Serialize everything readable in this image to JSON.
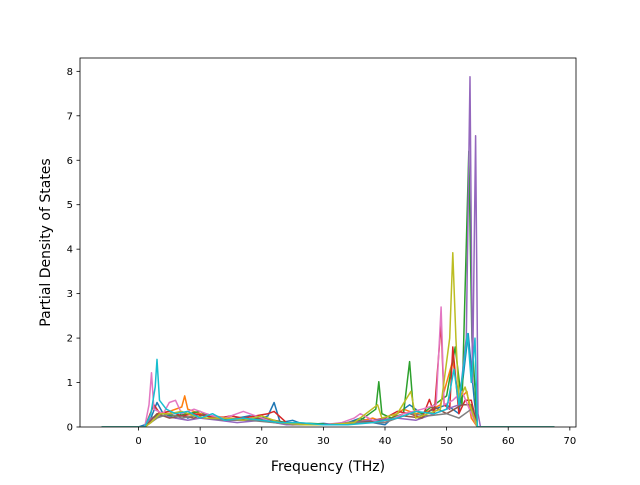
{
  "chart_data": {
    "type": "line",
    "title": "",
    "xlabel": "Frequency (THz)",
    "ylabel": "Partial Density of States",
    "xlim": [
      -9.5,
      71
    ],
    "ylim": [
      0,
      8.3
    ],
    "x_ticks": [
      0,
      10,
      20,
      30,
      40,
      50,
      60,
      70
    ],
    "y_ticks": [
      0,
      1,
      2,
      3,
      4,
      5,
      6,
      7,
      8
    ],
    "grid": false,
    "legend": "none",
    "series": [
      {
        "color": "#1f77b4",
        "points": [
          [
            -6,
            0
          ],
          [
            0,
            0
          ],
          [
            1,
            0.05
          ],
          [
            2,
            0.2
          ],
          [
            3,
            0.55
          ],
          [
            4,
            0.3
          ],
          [
            5,
            0.25
          ],
          [
            6,
            0.2
          ],
          [
            7,
            0.3
          ],
          [
            8,
            0.2
          ],
          [
            9,
            0.25
          ],
          [
            10,
            0.3
          ],
          [
            12,
            0.2
          ],
          [
            14,
            0.15
          ],
          [
            16,
            0.2
          ],
          [
            18,
            0.25
          ],
          [
            20,
            0.2
          ],
          [
            21,
            0.25
          ],
          [
            22,
            0.55
          ],
          [
            23,
            0.1
          ],
          [
            25,
            0.15
          ],
          [
            27,
            0.05
          ],
          [
            30,
            0.08
          ],
          [
            32,
            0.05
          ],
          [
            34,
            0.1
          ],
          [
            36,
            0.2
          ],
          [
            38,
            0.1
          ],
          [
            40,
            0.05
          ],
          [
            42,
            0.3
          ],
          [
            44,
            0.5
          ],
          [
            46,
            0.3
          ],
          [
            48,
            0.4
          ],
          [
            50,
            0.5
          ],
          [
            52,
            0.3
          ],
          [
            53.5,
            2.1
          ],
          [
            54.5,
            0.6
          ],
          [
            55,
            0
          ],
          [
            67.5,
            0
          ]
        ]
      },
      {
        "color": "#ff7f0e",
        "points": [
          [
            -6,
            0
          ],
          [
            1,
            0
          ],
          [
            3,
            0.3
          ],
          [
            5,
            0.35
          ],
          [
            7,
            0.45
          ],
          [
            7.5,
            0.7
          ],
          [
            8,
            0.4
          ],
          [
            10,
            0.3
          ],
          [
            12,
            0.25
          ],
          [
            15,
            0.2
          ],
          [
            18,
            0.15
          ],
          [
            20,
            0.2
          ],
          [
            22,
            0.1
          ],
          [
            26,
            0.05
          ],
          [
            30,
            0.05
          ],
          [
            35,
            0.1
          ],
          [
            38,
            0.2
          ],
          [
            40,
            0.1
          ],
          [
            43,
            0.4
          ],
          [
            45,
            0.3
          ],
          [
            47,
            0.35
          ],
          [
            49,
            0.5
          ],
          [
            51,
            1.5
          ],
          [
            52,
            0.6
          ],
          [
            53.3,
            0.8
          ],
          [
            54,
            0.2
          ],
          [
            55,
            0
          ],
          [
            67.5,
            0
          ]
        ]
      },
      {
        "color": "#2ca02c",
        "points": [
          [
            -6,
            0
          ],
          [
            1,
            0
          ],
          [
            2,
            0.2
          ],
          [
            4,
            0.3
          ],
          [
            6,
            0.25
          ],
          [
            8,
            0.3
          ],
          [
            10,
            0.35
          ],
          [
            12,
            0.2
          ],
          [
            14,
            0.2
          ],
          [
            17,
            0.15
          ],
          [
            20,
            0.2
          ],
          [
            24,
            0.1
          ],
          [
            28,
            0.08
          ],
          [
            32,
            0.05
          ],
          [
            36,
            0.15
          ],
          [
            38.5,
            0.4
          ],
          [
            39,
            1.02
          ],
          [
            39.5,
            0.3
          ],
          [
            41,
            0.2
          ],
          [
            43,
            0.3
          ],
          [
            44,
            1.47
          ],
          [
            44.6,
            0.4
          ],
          [
            46,
            0.3
          ],
          [
            48,
            0.5
          ],
          [
            50,
            0.7
          ],
          [
            51.4,
            1.8
          ],
          [
            52.5,
            0.5
          ],
          [
            53.6,
            6.2
          ],
          [
            54.1,
            2.0
          ],
          [
            55,
            0
          ],
          [
            67.5,
            0
          ]
        ]
      },
      {
        "color": "#d62728",
        "points": [
          [
            -6,
            0
          ],
          [
            1,
            0
          ],
          [
            2.5,
            0.5
          ],
          [
            3.5,
            0.3
          ],
          [
            5,
            0.35
          ],
          [
            7,
            0.25
          ],
          [
            9,
            0.3
          ],
          [
            11,
            0.25
          ],
          [
            13,
            0.2
          ],
          [
            15,
            0.25
          ],
          [
            17,
            0.2
          ],
          [
            19,
            0.25
          ],
          [
            21,
            0.3
          ],
          [
            22,
            0.35
          ],
          [
            24,
            0.1
          ],
          [
            28,
            0.05
          ],
          [
            32,
            0.05
          ],
          [
            36,
            0.1
          ],
          [
            40,
            0.2
          ],
          [
            42,
            0.35
          ],
          [
            44,
            0.3
          ],
          [
            46,
            0.2
          ],
          [
            47.2,
            0.62
          ],
          [
            48,
            0.3
          ],
          [
            49.1,
            2.35
          ],
          [
            49.6,
            0.5
          ],
          [
            50.5,
            0.4
          ],
          [
            51,
            1.8
          ],
          [
            52,
            0.3
          ],
          [
            53,
            0.6
          ],
          [
            54,
            0.6
          ],
          [
            55,
            0
          ],
          [
            67.5,
            0
          ]
        ]
      },
      {
        "color": "#9467bd",
        "points": [
          [
            -6,
            0
          ],
          [
            1,
            0
          ],
          [
            2,
            0.2
          ],
          [
            4,
            0.25
          ],
          [
            6,
            0.2
          ],
          [
            8,
            0.15
          ],
          [
            10,
            0.2
          ],
          [
            13,
            0.15
          ],
          [
            16,
            0.1
          ],
          [
            20,
            0.15
          ],
          [
            24,
            0.05
          ],
          [
            30,
            0.05
          ],
          [
            34,
            0.1
          ],
          [
            38,
            0.15
          ],
          [
            42,
            0.2
          ],
          [
            45,
            0.15
          ],
          [
            48,
            0.3
          ],
          [
            50,
            0.4
          ],
          [
            52,
            0.5
          ],
          [
            53.2,
            2.0
          ],
          [
            53.8,
            7.88
          ],
          [
            54.2,
            1.0
          ],
          [
            54.7,
            6.55
          ],
          [
            55.1,
            0.3
          ],
          [
            55.5,
            0
          ],
          [
            67.5,
            0
          ]
        ]
      },
      {
        "color": "#8c564b",
        "points": [
          [
            -6,
            0
          ],
          [
            1,
            0
          ],
          [
            3,
            0.3
          ],
          [
            5,
            0.2
          ],
          [
            7,
            0.25
          ],
          [
            9,
            0.2
          ],
          [
            11,
            0.3
          ],
          [
            13,
            0.2
          ],
          [
            16,
            0.15
          ],
          [
            19,
            0.2
          ],
          [
            22,
            0.15
          ],
          [
            25,
            0.05
          ],
          [
            30,
            0.05
          ],
          [
            35,
            0.1
          ],
          [
            40,
            0.15
          ],
          [
            43,
            0.25
          ],
          [
            46,
            0.2
          ],
          [
            48,
            0.45
          ],
          [
            50,
            0.3
          ],
          [
            52.5,
            0.5
          ],
          [
            54,
            0.5
          ],
          [
            55,
            0
          ],
          [
            67.5,
            0
          ]
        ]
      },
      {
        "color": "#e377c2",
        "points": [
          [
            -6,
            0
          ],
          [
            1,
            0
          ],
          [
            1.7,
            0.5
          ],
          [
            2.1,
            1.22
          ],
          [
            2.5,
            0.4
          ],
          [
            4,
            0.3
          ],
          [
            5,
            0.55
          ],
          [
            6,
            0.6
          ],
          [
            7,
            0.3
          ],
          [
            9,
            0.4
          ],
          [
            10,
            0.35
          ],
          [
            12,
            0.25
          ],
          [
            14,
            0.2
          ],
          [
            17,
            0.35
          ],
          [
            20,
            0.2
          ],
          [
            22,
            0.1
          ],
          [
            26,
            0.05
          ],
          [
            30,
            0.05
          ],
          [
            33,
            0.1
          ],
          [
            35,
            0.2
          ],
          [
            36,
            0.3
          ],
          [
            38,
            0.15
          ],
          [
            40,
            0.1
          ],
          [
            43,
            0.3
          ],
          [
            46,
            0.4
          ],
          [
            48.3,
            0.5
          ],
          [
            49.1,
            2.7
          ],
          [
            49.6,
            0.5
          ],
          [
            51,
            0.6
          ],
          [
            52.5,
            0.8
          ],
          [
            54,
            0.3
          ],
          [
            55,
            0
          ],
          [
            67.5,
            0
          ]
        ]
      },
      {
        "color": "#7f7f7f",
        "points": [
          [
            -6,
            0
          ],
          [
            1,
            0
          ],
          [
            3,
            0.2
          ],
          [
            5,
            0.3
          ],
          [
            7,
            0.2
          ],
          [
            9,
            0.25
          ],
          [
            11,
            0.2
          ],
          [
            14,
            0.15
          ],
          [
            18,
            0.15
          ],
          [
            22,
            0.1
          ],
          [
            26,
            0.05
          ],
          [
            30,
            0.05
          ],
          [
            35,
            0.1
          ],
          [
            40,
            0.1
          ],
          [
            44,
            0.3
          ],
          [
            47,
            0.25
          ],
          [
            50,
            0.3
          ],
          [
            52,
            0.2
          ],
          [
            54,
            0.4
          ],
          [
            55,
            0
          ],
          [
            67.5,
            0
          ]
        ]
      },
      {
        "color": "#bcbd22",
        "points": [
          [
            -6,
            0
          ],
          [
            1,
            0
          ],
          [
            2,
            0.1
          ],
          [
            3.5,
            0.3
          ],
          [
            5,
            0.3
          ],
          [
            7,
            0.35
          ],
          [
            9,
            0.25
          ],
          [
            11,
            0.2
          ],
          [
            14,
            0.2
          ],
          [
            17,
            0.15
          ],
          [
            20,
            0.25
          ],
          [
            23,
            0.1
          ],
          [
            27,
            0.05
          ],
          [
            31,
            0.05
          ],
          [
            35,
            0.1
          ],
          [
            38.8,
            0.5
          ],
          [
            39.5,
            0.2
          ],
          [
            42,
            0.3
          ],
          [
            44.2,
            0.8
          ],
          [
            45,
            0.2
          ],
          [
            47,
            0.3
          ],
          [
            49,
            0.4
          ],
          [
            50.5,
            2.0
          ],
          [
            51,
            3.92
          ],
          [
            51.5,
            2.0
          ],
          [
            52,
            0.6
          ],
          [
            53,
            0.9
          ],
          [
            54,
            0.4
          ],
          [
            55,
            0
          ],
          [
            67.5,
            0
          ]
        ]
      },
      {
        "color": "#17becf",
        "points": [
          [
            -6,
            0
          ],
          [
            1,
            0
          ],
          [
            2,
            0.3
          ],
          [
            2.7,
            0.9
          ],
          [
            3,
            1.52
          ],
          [
            3.4,
            0.6
          ],
          [
            4.5,
            0.4
          ],
          [
            6,
            0.3
          ],
          [
            8,
            0.35
          ],
          [
            10,
            0.2
          ],
          [
            12,
            0.3
          ],
          [
            14,
            0.15
          ],
          [
            17,
            0.2
          ],
          [
            20,
            0.15
          ],
          [
            23,
            0.1
          ],
          [
            26,
            0.1
          ],
          [
            30,
            0.05
          ],
          [
            34,
            0.05
          ],
          [
            38,
            0.1
          ],
          [
            42,
            0.2
          ],
          [
            45,
            0.35
          ],
          [
            48,
            0.3
          ],
          [
            50,
            0.4
          ],
          [
            51.2,
            1.3
          ],
          [
            52,
            0.5
          ],
          [
            53.4,
            2.1
          ],
          [
            54,
            1.0
          ],
          [
            54.6,
            2.0
          ],
          [
            55,
            0
          ],
          [
            67.5,
            0
          ]
        ]
      }
    ]
  }
}
